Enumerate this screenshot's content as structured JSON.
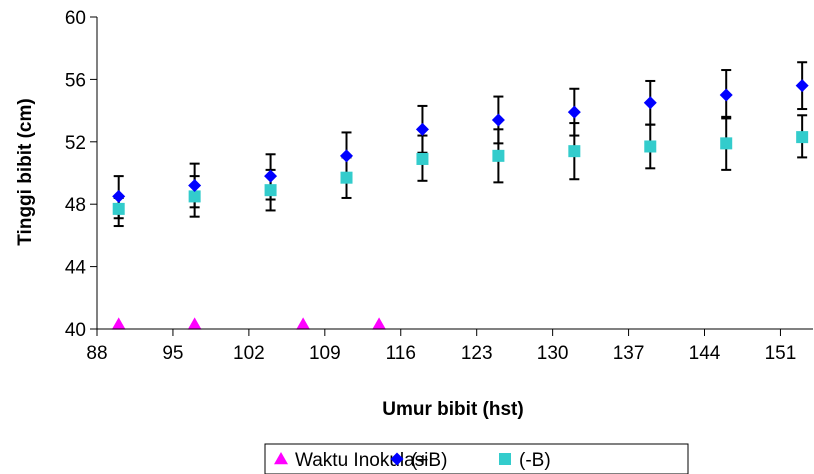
{
  "chart_data": {
    "type": "scatter",
    "xlabel": "Umur bibit (hst)",
    "ylabel": "Tinggi bibit (cm)",
    "xlim": [
      88,
      154
    ],
    "ylim": [
      40,
      60
    ],
    "xticks": [
      88,
      95,
      102,
      109,
      116,
      123,
      130,
      137,
      144,
      151
    ],
    "yticks": [
      40,
      44,
      48,
      52,
      56,
      60
    ],
    "grid": false,
    "legend_position": "bottom",
    "series": [
      {
        "name": "Waktu Inokulasi",
        "marker": "triangle",
        "color": "#ff00ff",
        "x": [
          90,
          97,
          107,
          114
        ],
        "y": [
          40.3,
          40.3,
          40.3,
          40.3
        ]
      },
      {
        "name": "(+B)",
        "marker": "diamond",
        "color": "#0000ff",
        "x": [
          90,
          97,
          104,
          111,
          118,
          125,
          132,
          139,
          146,
          153
        ],
        "y": [
          48.5,
          49.2,
          49.8,
          51.1,
          52.8,
          53.4,
          53.9,
          54.5,
          55.0,
          55.6
        ],
        "error_low": [
          47.1,
          47.8,
          48.3,
          49.5,
          51.3,
          51.9,
          52.4,
          53.1,
          53.5,
          54.1
        ],
        "error_high": [
          49.8,
          50.6,
          51.2,
          52.6,
          54.3,
          54.9,
          55.4,
          55.9,
          56.6,
          57.1
        ]
      },
      {
        "name": "(-B)",
        "marker": "square",
        "color": "#33cccc",
        "x": [
          90,
          97,
          104,
          111,
          118,
          125,
          132,
          139,
          146,
          153
        ],
        "y": [
          47.7,
          48.5,
          48.9,
          49.7,
          50.9,
          51.1,
          51.4,
          51.7,
          51.9,
          52.3
        ],
        "error_low": [
          46.6,
          47.2,
          47.6,
          48.4,
          49.5,
          49.4,
          49.6,
          50.3,
          50.2,
          51.0
        ],
        "error_high": [
          48.4,
          49.8,
          50.2,
          51.0,
          52.4,
          52.8,
          53.2,
          53.1,
          53.6,
          53.7
        ]
      }
    ]
  }
}
